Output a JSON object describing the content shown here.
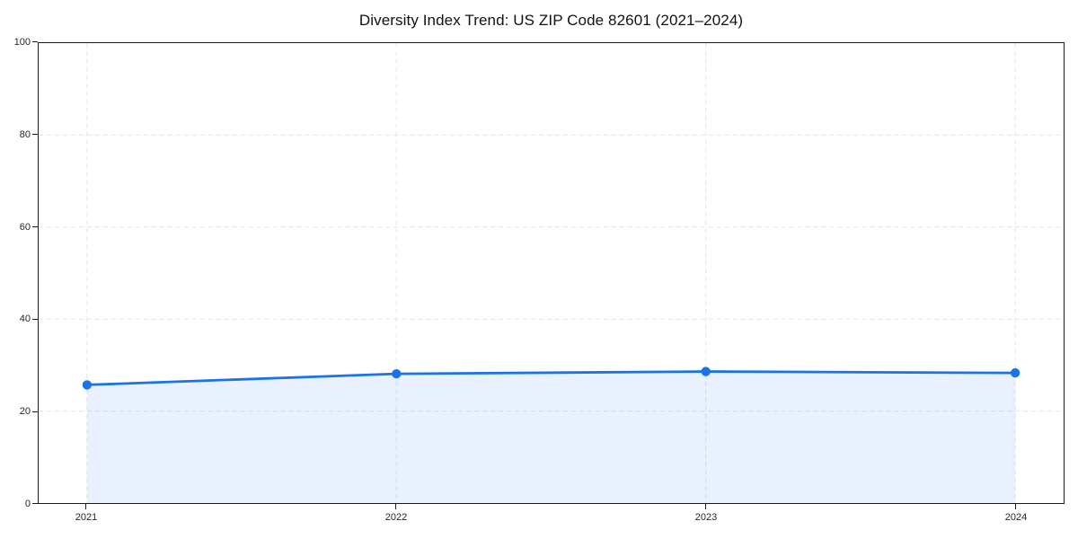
{
  "chart_data": {
    "type": "area",
    "title": "Diversity Index Trend: US ZIP Code 82601 (2021–2024)",
    "x": [
      2021,
      2022,
      2023,
      2024
    ],
    "xticklabels": [
      "2021",
      "2022",
      "2023",
      "2024"
    ],
    "series": [
      {
        "name": "Diversity Index",
        "values": [
          25.7,
          28.1,
          28.6,
          28.3
        ]
      }
    ],
    "xlabel": "",
    "ylabel": "",
    "ylim": [
      0,
      100
    ],
    "yticks": [
      0,
      20,
      40,
      60,
      80,
      100
    ],
    "yticklabels": [
      "0",
      "20",
      "40",
      "60",
      "80",
      "100"
    ],
    "grid": true,
    "grid_style": "dashed",
    "legend": false,
    "marker": "circle",
    "colors": {
      "line": "#1a73e8",
      "fill": "rgba(26,115,232,0.10)",
      "grid": "#e4e4e4",
      "spine": "#1a1a1a",
      "text": "#262626"
    }
  }
}
